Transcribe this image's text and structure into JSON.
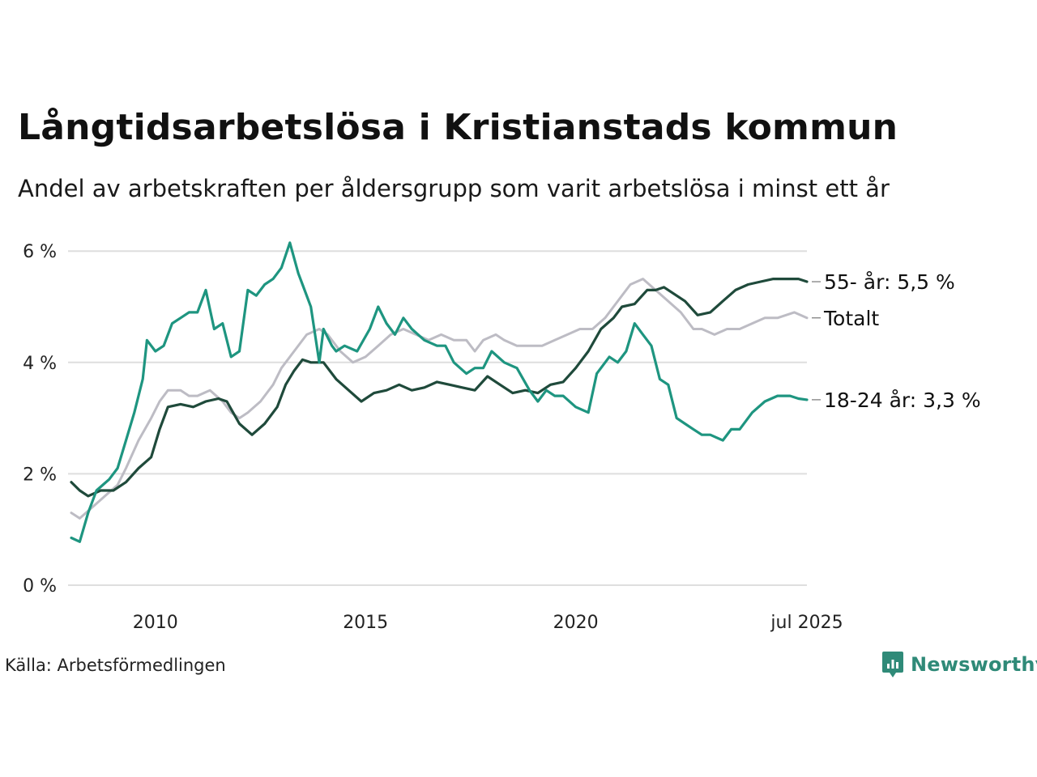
{
  "title": "Långtidsarbetslösa i Kristianstads kommun",
  "subtitle": "Andel av arbetskraften per åldersgrupp som varit arbetslösa i minst ett år",
  "source": "Källa: Arbetsförmedlingen",
  "logo": {
    "text": "Newsworthy",
    "icon": "newsworthy-logo-icon",
    "color": "#2f8a78"
  },
  "chart_data": {
    "type": "line",
    "title": "Långtidsarbetslösa i Kristianstads kommun",
    "subtitle": "Andel av arbetskraften per åldersgrupp som varit arbetslösa i minst ett år",
    "xlabel": "",
    "ylabel": "",
    "xlim": [
      2008.0,
      2025.5
    ],
    "ylim": [
      0,
      6.2
    ],
    "y_ticks": [
      0,
      2,
      4,
      6
    ],
    "y_tick_labels": [
      "0 %",
      "2 %",
      "4 %",
      "6 %"
    ],
    "x_ticks": [
      2010,
      2015,
      2020,
      2025.5
    ],
    "x_tick_labels": [
      "2010",
      "2015",
      "2020",
      "jul 2025"
    ],
    "grid": true,
    "legend": "direct labels at line ends (right)",
    "series": [
      {
        "name": "Totalt",
        "label": "Totalt",
        "color": "#bdbcc4",
        "x": [
          2008.0,
          2008.2,
          2008.5,
          2008.8,
          2009.1,
          2009.3,
          2009.6,
          2009.9,
          2010.1,
          2010.3,
          2010.6,
          2010.8,
          2011.0,
          2011.3,
          2011.6,
          2011.8,
          2012.0,
          2012.2,
          2012.5,
          2012.8,
          2013.0,
          2013.3,
          2013.6,
          2013.9,
          2014.1,
          2014.4,
          2014.7,
          2015.0,
          2015.3,
          2015.6,
          2015.9,
          2016.2,
          2016.5,
          2016.8,
          2017.1,
          2017.4,
          2017.6,
          2017.8,
          2018.1,
          2018.3,
          2018.6,
          2018.9,
          2019.2,
          2019.5,
          2019.8,
          2020.1,
          2020.4,
          2020.7,
          2021.0,
          2021.3,
          2021.6,
          2021.9,
          2022.2,
          2022.5,
          2022.8,
          2023.0,
          2023.3,
          2023.6,
          2023.9,
          2024.2,
          2024.5,
          2024.8,
          2025.2,
          2025.5
        ],
        "y": [
          1.3,
          1.2,
          1.4,
          1.6,
          1.8,
          2.1,
          2.6,
          3.0,
          3.3,
          3.5,
          3.5,
          3.4,
          3.4,
          3.5,
          3.3,
          3.1,
          3.0,
          3.1,
          3.3,
          3.6,
          3.9,
          4.2,
          4.5,
          4.6,
          4.5,
          4.2,
          4.0,
          4.1,
          4.3,
          4.5,
          4.6,
          4.5,
          4.4,
          4.5,
          4.4,
          4.4,
          4.2,
          4.4,
          4.5,
          4.4,
          4.3,
          4.3,
          4.3,
          4.4,
          4.5,
          4.6,
          4.6,
          4.8,
          5.1,
          5.4,
          5.5,
          5.3,
          5.1,
          4.9,
          4.6,
          4.6,
          4.5,
          4.6,
          4.6,
          4.7,
          4.8,
          4.8,
          4.9,
          4.8
        ]
      },
      {
        "name": "55- år",
        "label": "55- år: 5,5 %",
        "color": "#1f4a3b",
        "x": [
          2008.0,
          2008.2,
          2008.4,
          2008.7,
          2009.0,
          2009.3,
          2009.6,
          2009.9,
          2010.1,
          2010.3,
          2010.6,
          2010.9,
          2011.2,
          2011.5,
          2011.7,
          2012.0,
          2012.3,
          2012.6,
          2012.9,
          2013.1,
          2013.3,
          2013.5,
          2013.7,
          2014.0,
          2014.3,
          2014.6,
          2014.9,
          2015.2,
          2015.5,
          2015.8,
          2016.1,
          2016.4,
          2016.7,
          2017.0,
          2017.3,
          2017.6,
          2017.9,
          2018.2,
          2018.5,
          2018.8,
          2019.1,
          2019.4,
          2019.7,
          2020.0,
          2020.3,
          2020.6,
          2020.9,
          2021.1,
          2021.4,
          2021.7,
          2021.9,
          2022.1,
          2022.3,
          2022.6,
          2022.9,
          2023.2,
          2023.5,
          2023.8,
          2024.1,
          2024.4,
          2024.7,
          2025.0,
          2025.3,
          2025.5
        ],
        "y": [
          1.85,
          1.7,
          1.6,
          1.7,
          1.7,
          1.85,
          2.1,
          2.3,
          2.8,
          3.2,
          3.25,
          3.2,
          3.3,
          3.35,
          3.3,
          2.9,
          2.7,
          2.9,
          3.2,
          3.6,
          3.85,
          4.05,
          4.0,
          4.0,
          3.7,
          3.5,
          3.3,
          3.45,
          3.5,
          3.6,
          3.5,
          3.55,
          3.65,
          3.6,
          3.55,
          3.5,
          3.75,
          3.6,
          3.45,
          3.5,
          3.45,
          3.6,
          3.65,
          3.9,
          4.2,
          4.6,
          4.8,
          5.0,
          5.05,
          5.3,
          5.3,
          5.35,
          5.25,
          5.1,
          4.85,
          4.9,
          5.1,
          5.3,
          5.4,
          5.45,
          5.5,
          5.5,
          5.5,
          5.45
        ]
      },
      {
        "name": "18-24 år",
        "label": "18-24 år: 3,3 %",
        "color": "#1e9580",
        "x": [
          2008.0,
          2008.2,
          2008.4,
          2008.6,
          2008.9,
          2009.1,
          2009.3,
          2009.5,
          2009.7,
          2009.8,
          2010.0,
          2010.2,
          2010.4,
          2010.6,
          2010.8,
          2011.0,
          2011.2,
          2011.4,
          2011.6,
          2011.8,
          2012.0,
          2012.2,
          2012.4,
          2012.6,
          2012.8,
          2013.0,
          2013.2,
          2013.4,
          2013.5,
          2013.7,
          2013.9,
          2014.0,
          2014.2,
          2014.3,
          2014.5,
          2014.8,
          2015.1,
          2015.3,
          2015.5,
          2015.7,
          2015.9,
          2016.1,
          2016.4,
          2016.7,
          2016.9,
          2017.1,
          2017.4,
          2017.6,
          2017.8,
          2018.0,
          2018.3,
          2018.6,
          2018.9,
          2019.1,
          2019.3,
          2019.5,
          2019.7,
          2020.0,
          2020.3,
          2020.5,
          2020.8,
          2021.0,
          2021.2,
          2021.4,
          2021.6,
          2021.8,
          2022.0,
          2022.2,
          2022.4,
          2022.6,
          2022.8,
          2023.0,
          2023.2,
          2023.5,
          2023.7,
          2023.9,
          2024.2,
          2024.5,
          2024.8,
          2025.1,
          2025.3,
          2025.5
        ],
        "y": [
          0.85,
          0.78,
          1.3,
          1.7,
          1.9,
          2.1,
          2.6,
          3.1,
          3.7,
          4.4,
          4.2,
          4.3,
          4.7,
          4.8,
          4.9,
          4.9,
          5.3,
          4.6,
          4.7,
          4.1,
          4.2,
          5.3,
          5.2,
          5.4,
          5.5,
          5.7,
          6.15,
          5.6,
          5.4,
          5.0,
          4.0,
          4.6,
          4.3,
          4.2,
          4.3,
          4.2,
          4.6,
          5.0,
          4.7,
          4.5,
          4.8,
          4.6,
          4.4,
          4.3,
          4.3,
          4.0,
          3.8,
          3.9,
          3.9,
          4.2,
          4.0,
          3.9,
          3.5,
          3.3,
          3.5,
          3.4,
          3.4,
          3.2,
          3.1,
          3.8,
          4.1,
          4.0,
          4.2,
          4.7,
          4.5,
          4.3,
          3.7,
          3.6,
          3.0,
          2.9,
          2.8,
          2.7,
          2.7,
          2.6,
          2.8,
          2.8,
          3.1,
          3.3,
          3.4,
          3.4,
          3.35,
          3.33
        ]
      }
    ]
  }
}
